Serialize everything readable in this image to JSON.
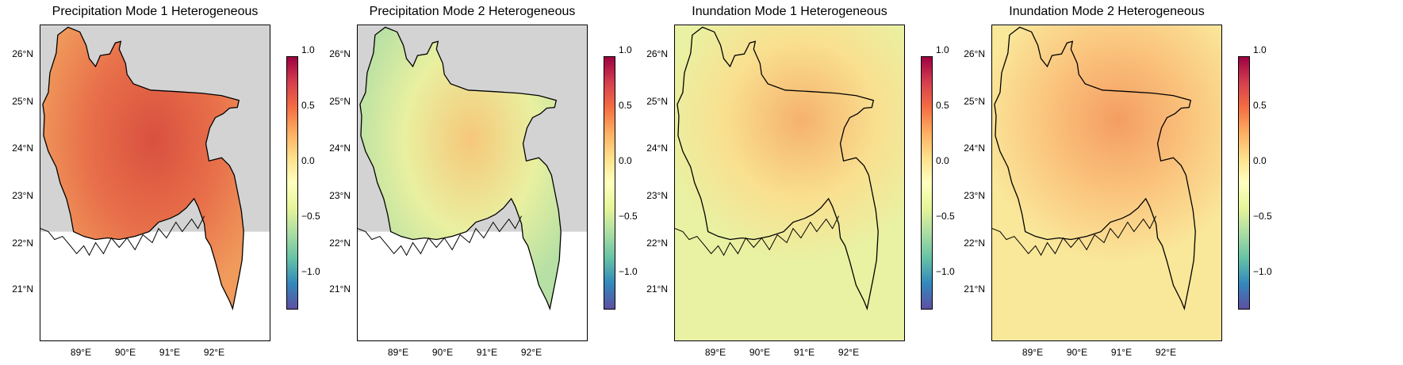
{
  "panels": [
    {
      "title": "Precipitation Mode 1 Heterogeneous",
      "ocean": false,
      "fill": [
        "#e8704a",
        "#d9503f",
        "#f09a5c"
      ]
    },
    {
      "title": "Precipitation Mode 2 Heterogeneous",
      "ocean": false,
      "fill": [
        "#e9f0a0",
        "#f6c77a",
        "#b6e0a4"
      ]
    },
    {
      "title": "Inundation Mode 1 Heterogeneous",
      "ocean": true,
      "fill": [
        "#fcdc8c",
        "#f7a664",
        "#e9f1a2"
      ]
    },
    {
      "title": "Inundation Mode 2 Heterogeneous",
      "ocean": true,
      "fill": [
        "#fbc07a",
        "#f39058",
        "#f9e79a"
      ]
    }
  ],
  "y_ticks": [
    "26°N",
    "25°N",
    "24°N",
    "23°N",
    "22°N",
    "21°N"
  ],
  "x_ticks": [
    "89°E",
    "90°E",
    "91°E",
    "92°E"
  ],
  "colorbar": {
    "ticks": [
      "1.0",
      "0.5",
      "0.0",
      "−0.5",
      "−1.0"
    ],
    "range": [
      -1.0,
      1.0
    ],
    "colormap": "Spectral_r"
  },
  "map_background": {
    "no_data": "#d3d3d3"
  }
}
